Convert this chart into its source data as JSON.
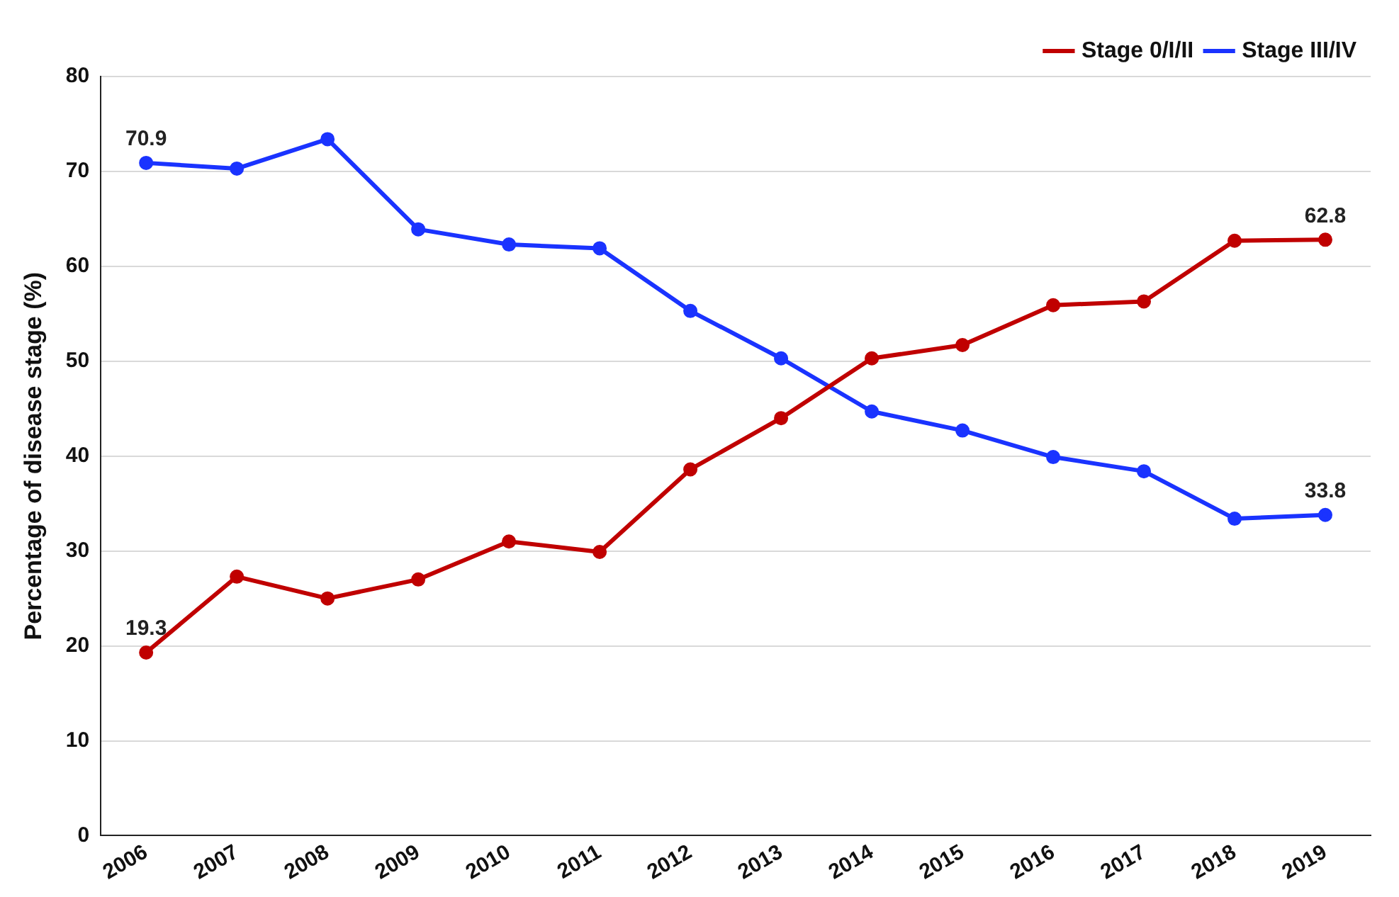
{
  "chart_data": {
    "type": "line",
    "ylabel": "Percentage of disease stage (%)",
    "categories": [
      "2006",
      "2007",
      "2008",
      "2009",
      "2010",
      "2011",
      "2012",
      "2013",
      "2014",
      "2015",
      "2016",
      "2017",
      "2018",
      "2019"
    ],
    "series": [
      {
        "name": "Stage 0/I/II",
        "color": "#c00000",
        "values": [
          19.3,
          27.3,
          25.0,
          27.0,
          31.0,
          29.9,
          38.6,
          44.0,
          50.3,
          51.7,
          55.9,
          56.3,
          62.7,
          62.8
        ],
        "value_labels": [
          "19.3",
          null,
          null,
          null,
          null,
          null,
          null,
          null,
          null,
          null,
          null,
          null,
          null,
          "62.8"
        ]
      },
      {
        "name": "Stage III/IV",
        "color": "#1a33ff",
        "values": [
          70.9,
          70.3,
          73.4,
          63.9,
          62.3,
          61.9,
          55.3,
          50.3,
          44.7,
          42.7,
          39.9,
          38.4,
          33.4,
          33.8
        ],
        "value_labels": [
          "70.9",
          null,
          null,
          null,
          null,
          null,
          null,
          null,
          null,
          null,
          null,
          null,
          null,
          "33.8"
        ]
      }
    ],
    "ylim": [
      0,
      80
    ],
    "yticks": [
      0,
      10,
      20,
      30,
      40,
      50,
      60,
      70,
      80
    ],
    "grid": "y",
    "legend": "top right",
    "marker": "circle",
    "line_style": "solid"
  }
}
